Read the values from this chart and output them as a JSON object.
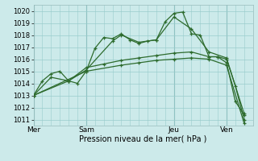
{
  "background_color": "#cceaea",
  "grid_color": "#99cccc",
  "line_color": "#2d6b2d",
  "marker_color": "#2d6b2d",
  "xlabel": "Pression niveau de la mer( hPa )",
  "ylim": [
    1010.5,
    1020.5
  ],
  "yticks": [
    1011,
    1012,
    1013,
    1014,
    1015,
    1016,
    1017,
    1018,
    1019,
    1020
  ],
  "xtick_labels": [
    "Mer",
    "Sam",
    "Jeu",
    "Ven"
  ],
  "xtick_positions": [
    0,
    3,
    8,
    11
  ],
  "xlim": [
    0,
    12.5
  ],
  "series": [
    {
      "x": [
        0,
        0.5,
        1.0,
        1.5,
        2.0,
        2.5,
        3.0,
        3.5,
        4.0,
        4.5,
        5.0,
        5.5,
        6.0,
        6.5,
        7.0,
        7.5,
        8.0,
        8.5,
        9.0,
        9.5,
        10.0,
        10.5,
        11.0,
        11.5,
        12.0
      ],
      "y": [
        1013.0,
        1014.2,
        1014.8,
        1015.0,
        1014.2,
        1014.0,
        1015.0,
        1016.9,
        1017.8,
        1017.7,
        1018.1,
        1017.6,
        1017.3,
        1017.5,
        1017.6,
        1019.1,
        1019.8,
        1019.9,
        1018.1,
        1018.0,
        1016.2,
        1016.2,
        1016.0,
        1013.8,
        1011.0
      ]
    },
    {
      "x": [
        0,
        1.0,
        2.0,
        3.0,
        4.5,
        5.0,
        6.0,
        7.0,
        8.0,
        9.0,
        10.0,
        11.0,
        12.0
      ],
      "y": [
        1013.0,
        1014.5,
        1014.2,
        1015.1,
        1017.5,
        1018.0,
        1017.4,
        1017.6,
        1019.5,
        1018.5,
        1016.6,
        1016.1,
        1011.5
      ]
    },
    {
      "x": [
        0,
        2.0,
        3.0,
        4.0,
        5.0,
        6.0,
        7.0,
        8.0,
        9.0,
        10.0,
        10.5,
        11.0,
        11.5,
        12.0
      ],
      "y": [
        1013.0,
        1014.2,
        1015.3,
        1015.6,
        1015.9,
        1016.1,
        1016.3,
        1016.5,
        1016.6,
        1016.2,
        1016.2,
        1015.7,
        1012.5,
        1011.4
      ]
    },
    {
      "x": [
        0,
        3.0,
        5.0,
        6.0,
        7.0,
        8.0,
        9.0,
        10.0,
        11.0,
        12.0
      ],
      "y": [
        1013.0,
        1015.0,
        1015.5,
        1015.7,
        1015.9,
        1016.0,
        1016.1,
        1016.0,
        1015.5,
        1010.7
      ]
    }
  ],
  "vline_color": "#7aadad",
  "vlines": [
    0,
    3,
    8,
    11
  ],
  "xlabel_fontsize": 7,
  "ytick_fontsize": 6,
  "xtick_fontsize": 6.5
}
